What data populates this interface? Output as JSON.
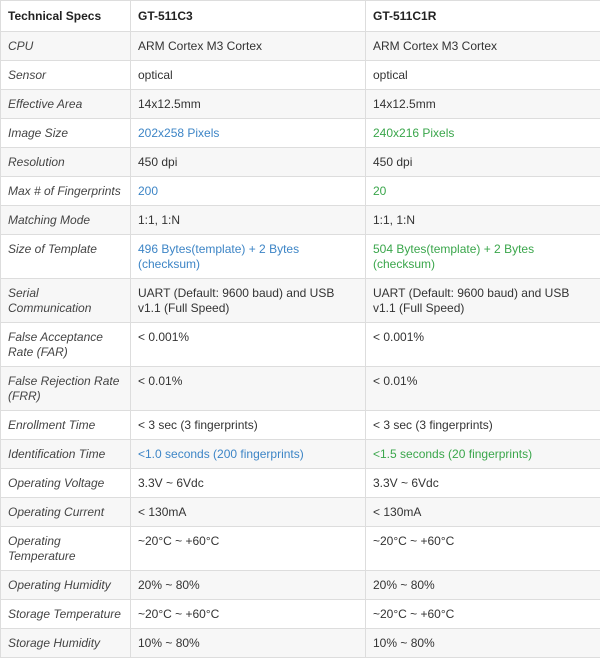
{
  "table": {
    "header": [
      "Technical Specs",
      "GT-511C3",
      "GT-511C1R"
    ],
    "rows": [
      [
        "CPU",
        "ARM Cortex M3 Cortex",
        "ARM Cortex M3 Cortex"
      ],
      [
        "Sensor",
        "optical",
        "optical"
      ],
      [
        "Effective Area",
        "14x12.5mm",
        "14x12.5mm"
      ],
      [
        "Image Size",
        "202x258 Pixels",
        "240x216 Pixels"
      ],
      [
        "Resolution",
        "450 dpi",
        "450 dpi"
      ],
      [
        "Max # of Fingerprints",
        "200",
        "20"
      ],
      [
        "Matching Mode",
        "1:1, 1:N",
        "1:1, 1:N"
      ],
      [
        "Size of Template",
        "496 Bytes(template) + 2 Bytes (checksum)",
        "504 Bytes(template) + 2 Bytes (checksum)"
      ],
      [
        "Serial Communication",
        "UART (Default: 9600 baud) and USB v1.1 (Full Speed)",
        "UART (Default: 9600 baud) and USB v1.1 (Full Speed)"
      ],
      [
        "False Acceptance Rate (FAR)",
        "< 0.001%",
        "< 0.001%"
      ],
      [
        "False Rejection Rate (FRR)",
        "< 0.01%",
        "< 0.01%"
      ],
      [
        "Enrollment Time",
        "< 3 sec (3 fingerprints)",
        "< 3 sec (3 fingerprints)"
      ],
      [
        "Identification Time",
        "<1.0 seconds (200 fingerprints)",
        "<1.5 seconds (20 fingerprints)"
      ],
      [
        "Operating Voltage",
        "3.3V ~ 6Vdc",
        "3.3V ~ 6Vdc"
      ],
      [
        "Operating Current",
        "< 130mA",
        "< 130mA"
      ],
      [
        "Operating Temperature",
        "~20°C ~ +60°C",
        "~20°C ~ +60°C"
      ],
      [
        "Operating Humidity",
        "20% ~ 80%",
        "20% ~ 80%"
      ],
      [
        "Storage Temperature",
        "~20°C ~ +60°C",
        "~20°C ~ +60°C"
      ],
      [
        "Storage Humidity",
        "10% ~ 80%",
        "10% ~ 80%"
      ]
    ]
  }
}
